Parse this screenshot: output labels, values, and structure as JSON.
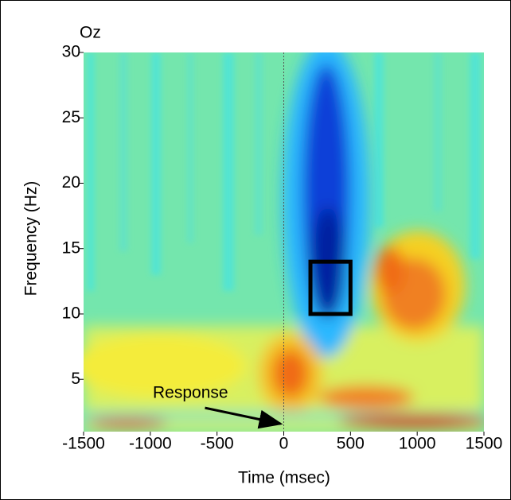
{
  "chart_data": {
    "type": "heatmap",
    "title": "Oz",
    "x_label": "Time (msec)",
    "y_label": "Frequency (Hz)",
    "xlim": [
      -1500,
      1500
    ],
    "ylim": [
      1,
      30
    ],
    "xticks": [
      -1500,
      -1000,
      -500,
      0,
      500,
      1000,
      1500
    ],
    "yticks": [
      5,
      10,
      15,
      20,
      25,
      30
    ],
    "event_x": 0,
    "box": {
      "x": [
        200,
        500
      ],
      "y": [
        10,
        14
      ]
    },
    "annotation": {
      "text": "Response",
      "x": 0,
      "y": 1.6
    }
  }
}
